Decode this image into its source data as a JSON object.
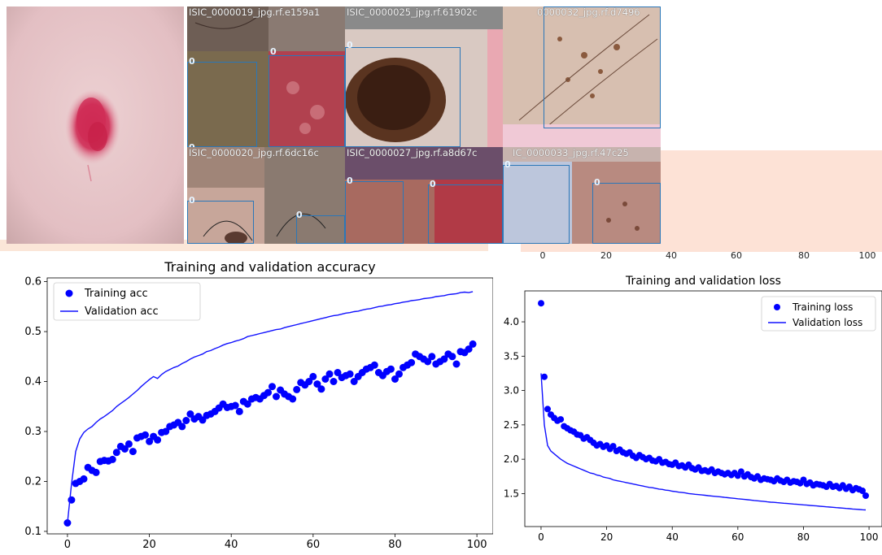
{
  "mosaic": {
    "tiles": [
      {
        "label": "ISIC_0000019_jpg.rf.e159a1",
        "class_ids": [
          "0",
          "0",
          "0"
        ]
      },
      {
        "label": "ISIC_0000025_jpg.rf.61902c",
        "class_ids": [
          "0"
        ]
      },
      {
        "label": "0000032_jpg.rf.d7496",
        "class_ids": []
      },
      {
        "label": "ISIC_0000020_jpg.rf.6dc16c",
        "class_ids": [
          "0",
          "0"
        ]
      },
      {
        "label": "ISIC_0000027_jpg.rf.a8d67c",
        "class_ids": [
          "0",
          "0"
        ]
      },
      {
        "label": "IC_0000033_jpg.rf.47c25",
        "class_ids": [
          "0",
          "0"
        ]
      }
    ],
    "partial_axis_ticks": [
      "0",
      "20",
      "40",
      "60",
      "80",
      "100"
    ]
  },
  "chart_data": [
    {
      "type": "scatter",
      "title": "Training and validation accuracy",
      "xlim": [
        -4.95,
        103.95
      ],
      "ylim": [
        0.095,
        0.6075
      ],
      "xticks": [
        0,
        20,
        40,
        60,
        80,
        100
      ],
      "yticks": [
        0.1,
        0.2,
        0.3,
        0.4,
        0.5,
        0.6
      ],
      "ytick_labels": [
        "0.1",
        "0.2",
        "0.3",
        "0.4",
        "0.5",
        "0.6"
      ],
      "legend_position": "top-left",
      "series": [
        {
          "name": "Training acc",
          "style": "points",
          "color": "#0000ff",
          "x": [
            0,
            1,
            2,
            3,
            4,
            5,
            6,
            7,
            8,
            9,
            10,
            11,
            12,
            13,
            14,
            15,
            16,
            17,
            18,
            19,
            20,
            21,
            22,
            23,
            24,
            25,
            26,
            27,
            28,
            29,
            30,
            31,
            32,
            33,
            34,
            35,
            36,
            37,
            38,
            39,
            40,
            41,
            42,
            43,
            44,
            45,
            46,
            47,
            48,
            49,
            50,
            51,
            52,
            53,
            54,
            55,
            56,
            57,
            58,
            59,
            60,
            61,
            62,
            63,
            64,
            65,
            66,
            67,
            68,
            69,
            70,
            71,
            72,
            73,
            74,
            75,
            76,
            77,
            78,
            79,
            80,
            81,
            82,
            83,
            84,
            85,
            86,
            87,
            88,
            89,
            90,
            91,
            92,
            93,
            94,
            95,
            96,
            97,
            98,
            99
          ],
          "y": [
            0.117,
            0.163,
            0.196,
            0.2,
            0.205,
            0.228,
            0.222,
            0.218,
            0.24,
            0.242,
            0.241,
            0.244,
            0.258,
            0.27,
            0.265,
            0.275,
            0.26,
            0.287,
            0.29,
            0.293,
            0.28,
            0.29,
            0.283,
            0.298,
            0.3,
            0.31,
            0.313,
            0.318,
            0.31,
            0.322,
            0.335,
            0.325,
            0.33,
            0.323,
            0.332,
            0.335,
            0.34,
            0.347,
            0.355,
            0.348,
            0.35,
            0.352,
            0.34,
            0.36,
            0.355,
            0.365,
            0.368,
            0.365,
            0.372,
            0.378,
            0.39,
            0.37,
            0.383,
            0.375,
            0.37,
            0.365,
            0.384,
            0.398,
            0.393,
            0.4,
            0.41,
            0.395,
            0.385,
            0.405,
            0.415,
            0.4,
            0.418,
            0.408,
            0.412,
            0.415,
            0.4,
            0.41,
            0.418,
            0.425,
            0.428,
            0.433,
            0.418,
            0.412,
            0.42,
            0.425,
            0.405,
            0.415,
            0.428,
            0.433,
            0.438,
            0.455,
            0.45,
            0.445,
            0.44,
            0.45,
            0.435,
            0.44,
            0.445,
            0.455,
            0.45,
            0.435,
            0.46,
            0.458,
            0.465,
            0.475
          ]
        },
        {
          "name": "Validation acc",
          "style": "line",
          "color": "#1010ff",
          "x": [
            0,
            1,
            2,
            3,
            4,
            5,
            6,
            7,
            8,
            9,
            10,
            11,
            12,
            13,
            14,
            15,
            16,
            17,
            18,
            19,
            20,
            21,
            22,
            23,
            24,
            25,
            26,
            27,
            28,
            29,
            30,
            31,
            32,
            33,
            34,
            35,
            36,
            37,
            38,
            39,
            40,
            41,
            42,
            43,
            44,
            45,
            46,
            47,
            48,
            49,
            50,
            51,
            52,
            53,
            54,
            55,
            56,
            57,
            58,
            59,
            60,
            61,
            62,
            63,
            64,
            65,
            66,
            67,
            68,
            69,
            70,
            71,
            72,
            73,
            74,
            75,
            76,
            77,
            78,
            79,
            80,
            81,
            82,
            83,
            84,
            85,
            86,
            87,
            88,
            89,
            90,
            91,
            92,
            93,
            94,
            95,
            96,
            97,
            98,
            99
          ],
          "y": [
            0.117,
            0.195,
            0.26,
            0.285,
            0.298,
            0.305,
            0.31,
            0.318,
            0.325,
            0.33,
            0.336,
            0.342,
            0.35,
            0.356,
            0.362,
            0.368,
            0.375,
            0.382,
            0.39,
            0.397,
            0.404,
            0.41,
            0.406,
            0.414,
            0.42,
            0.424,
            0.428,
            0.431,
            0.436,
            0.44,
            0.445,
            0.449,
            0.452,
            0.455,
            0.46,
            0.462,
            0.466,
            0.469,
            0.473,
            0.476,
            0.478,
            0.481,
            0.483,
            0.486,
            0.49,
            0.492,
            0.494,
            0.496,
            0.498,
            0.5,
            0.502,
            0.504,
            0.505,
            0.508,
            0.51,
            0.512,
            0.514,
            0.516,
            0.518,
            0.52,
            0.522,
            0.524,
            0.526,
            0.528,
            0.53,
            0.532,
            0.533,
            0.535,
            0.537,
            0.538,
            0.54,
            0.541,
            0.543,
            0.545,
            0.546,
            0.548,
            0.55,
            0.551,
            0.553,
            0.554,
            0.556,
            0.557,
            0.559,
            0.56,
            0.562,
            0.563,
            0.564,
            0.566,
            0.567,
            0.568,
            0.57,
            0.571,
            0.572,
            0.574,
            0.575,
            0.576,
            0.578,
            0.579,
            0.578,
            0.58
          ]
        }
      ]
    },
    {
      "type": "scatter",
      "title": "Training and validation loss",
      "xlim": [
        -4.95,
        103.95
      ],
      "ylim": [
        1.02,
        4.45
      ],
      "xticks": [
        0,
        20,
        40,
        60,
        80,
        100
      ],
      "yticks": [
        1.5,
        2.0,
        2.5,
        3.0,
        3.5,
        4.0
      ],
      "ytick_labels": [
        "1.5",
        "2.0",
        "2.5",
        "3.0",
        "3.5",
        "4.0"
      ],
      "legend_position": "top-right",
      "series": [
        {
          "name": "Training loss",
          "style": "points",
          "color": "#0000ff",
          "x": [
            0,
            1,
            2,
            3,
            4,
            5,
            6,
            7,
            8,
            9,
            10,
            11,
            12,
            13,
            14,
            15,
            16,
            17,
            18,
            19,
            20,
            21,
            22,
            23,
            24,
            25,
            26,
            27,
            28,
            29,
            30,
            31,
            32,
            33,
            34,
            35,
            36,
            37,
            38,
            39,
            40,
            41,
            42,
            43,
            44,
            45,
            46,
            47,
            48,
            49,
            50,
            51,
            52,
            53,
            54,
            55,
            56,
            57,
            58,
            59,
            60,
            61,
            62,
            63,
            64,
            65,
            66,
            67,
            68,
            69,
            70,
            71,
            72,
            73,
            74,
            75,
            76,
            77,
            78,
            79,
            80,
            81,
            82,
            83,
            84,
            85,
            86,
            87,
            88,
            89,
            90,
            91,
            92,
            93,
            94,
            95,
            96,
            97,
            98,
            99
          ],
          "y": [
            4.27,
            3.2,
            2.73,
            2.65,
            2.6,
            2.56,
            2.58,
            2.48,
            2.45,
            2.42,
            2.4,
            2.36,
            2.35,
            2.3,
            2.32,
            2.28,
            2.24,
            2.2,
            2.22,
            2.18,
            2.2,
            2.15,
            2.19,
            2.12,
            2.14,
            2.1,
            2.08,
            2.1,
            2.05,
            2.02,
            2.06,
            2.03,
            2.0,
            2.02,
            1.98,
            1.97,
            2.0,
            1.95,
            1.96,
            1.93,
            1.92,
            1.95,
            1.9,
            1.91,
            1.88,
            1.92,
            1.87,
            1.85,
            1.88,
            1.83,
            1.84,
            1.82,
            1.85,
            1.8,
            1.82,
            1.8,
            1.78,
            1.8,
            1.77,
            1.8,
            1.76,
            1.82,
            1.75,
            1.78,
            1.74,
            1.72,
            1.75,
            1.7,
            1.72,
            1.71,
            1.7,
            1.68,
            1.72,
            1.69,
            1.67,
            1.7,
            1.66,
            1.68,
            1.67,
            1.65,
            1.7,
            1.64,
            1.66,
            1.62,
            1.64,
            1.63,
            1.62,
            1.6,
            1.64,
            1.6,
            1.61,
            1.58,
            1.62,
            1.57,
            1.6,
            1.55,
            1.58,
            1.56,
            1.54,
            1.47
          ]
        },
        {
          "name": "Validation loss",
          "style": "line",
          "color": "#1010ff",
          "x": [
            0,
            1,
            2,
            3,
            4,
            5,
            6,
            7,
            8,
            9,
            10,
            11,
            12,
            13,
            14,
            15,
            16,
            17,
            18,
            19,
            20,
            21,
            22,
            23,
            24,
            25,
            26,
            27,
            28,
            29,
            30,
            31,
            32,
            33,
            34,
            35,
            36,
            37,
            38,
            39,
            40,
            41,
            42,
            43,
            44,
            45,
            46,
            47,
            48,
            49,
            50,
            51,
            52,
            53,
            54,
            55,
            56,
            57,
            58,
            59,
            60,
            61,
            62,
            63,
            64,
            65,
            66,
            67,
            68,
            69,
            70,
            71,
            72,
            73,
            74,
            75,
            76,
            77,
            78,
            79,
            80,
            81,
            82,
            83,
            84,
            85,
            86,
            87,
            88,
            89,
            90,
            91,
            92,
            93,
            94,
            95,
            96,
            97,
            98,
            99
          ],
          "y": [
            3.25,
            2.5,
            2.2,
            2.12,
            2.08,
            2.04,
            2.0,
            1.97,
            1.94,
            1.92,
            1.9,
            1.88,
            1.86,
            1.84,
            1.82,
            1.8,
            1.79,
            1.77,
            1.76,
            1.74,
            1.73,
            1.72,
            1.7,
            1.69,
            1.68,
            1.67,
            1.66,
            1.65,
            1.64,
            1.63,
            1.62,
            1.61,
            1.6,
            1.59,
            1.585,
            1.575,
            1.565,
            1.56,
            1.55,
            1.545,
            1.535,
            1.53,
            1.52,
            1.515,
            1.51,
            1.5,
            1.495,
            1.49,
            1.485,
            1.48,
            1.475,
            1.47,
            1.465,
            1.46,
            1.455,
            1.45,
            1.445,
            1.44,
            1.435,
            1.43,
            1.425,
            1.42,
            1.415,
            1.41,
            1.405,
            1.4,
            1.395,
            1.39,
            1.385,
            1.38,
            1.375,
            1.372,
            1.368,
            1.364,
            1.36,
            1.356,
            1.352,
            1.348,
            1.344,
            1.34,
            1.336,
            1.332,
            1.328,
            1.324,
            1.32,
            1.316,
            1.312,
            1.308,
            1.304,
            1.3,
            1.296,
            1.292,
            1.288,
            1.284,
            1.28,
            1.276,
            1.272,
            1.268,
            1.265,
            1.262
          ]
        }
      ]
    }
  ]
}
